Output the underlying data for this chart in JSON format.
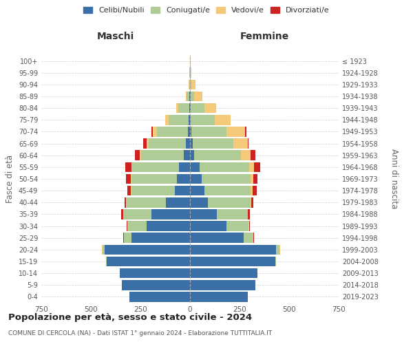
{
  "age_groups": [
    "0-4",
    "5-9",
    "10-14",
    "15-19",
    "20-24",
    "25-29",
    "30-34",
    "35-39",
    "40-44",
    "45-49",
    "50-54",
    "55-59",
    "60-64",
    "65-69",
    "70-74",
    "75-79",
    "80-84",
    "85-89",
    "90-94",
    "95-99",
    "100+"
  ],
  "birth_years": [
    "2019-2023",
    "2014-2018",
    "2009-2013",
    "2004-2008",
    "1999-2003",
    "1994-1998",
    "1989-1993",
    "1984-1988",
    "1979-1983",
    "1974-1978",
    "1969-1973",
    "1964-1968",
    "1959-1963",
    "1954-1958",
    "1949-1953",
    "1944-1948",
    "1939-1943",
    "1934-1938",
    "1929-1933",
    "1924-1928",
    "≤ 1923"
  ],
  "colors": {
    "celibe": "#3a6fa8",
    "coniugato": "#b0cc96",
    "vedovo": "#f5c97a",
    "divorziato": "#cc2222"
  },
  "males": {
    "celibe": [
      305,
      345,
      355,
      420,
      430,
      295,
      220,
      195,
      120,
      75,
      65,
      55,
      30,
      22,
      12,
      8,
      5,
      2,
      0,
      0,
      0
    ],
    "coniugato": [
      0,
      0,
      0,
      5,
      10,
      40,
      95,
      140,
      200,
      220,
      230,
      235,
      215,
      185,
      155,
      100,
      55,
      15,
      5,
      2,
      0
    ],
    "vedovo": [
      0,
      0,
      0,
      0,
      5,
      0,
      0,
      2,
      2,
      3,
      5,
      5,
      10,
      12,
      20,
      18,
      10,
      5,
      3,
      0,
      0
    ],
    "divorziato": [
      0,
      0,
      0,
      0,
      0,
      2,
      4,
      10,
      8,
      18,
      22,
      30,
      22,
      18,
      8,
      0,
      0,
      0,
      0,
      0,
      0
    ]
  },
  "females": {
    "nubile": [
      290,
      330,
      340,
      430,
      435,
      270,
      185,
      135,
      90,
      72,
      60,
      48,
      22,
      15,
      8,
      5,
      3,
      2,
      0,
      0,
      0
    ],
    "coniugata": [
      0,
      0,
      0,
      5,
      15,
      50,
      110,
      155,
      215,
      235,
      245,
      250,
      235,
      205,
      175,
      120,
      70,
      20,
      8,
      3,
      0
    ],
    "vedova": [
      0,
      0,
      0,
      0,
      5,
      0,
      3,
      3,
      5,
      8,
      15,
      25,
      50,
      70,
      95,
      80,
      60,
      40,
      20,
      5,
      2
    ],
    "divorziata": [
      0,
      0,
      0,
      0,
      0,
      2,
      5,
      10,
      10,
      22,
      22,
      32,
      22,
      5,
      5,
      0,
      0,
      0,
      0,
      0,
      0
    ]
  },
  "xlim": 750,
  "xlabel_left": "Maschi",
  "xlabel_right": "Femmine",
  "ylabel": "Fasce di età",
  "ylabel_right": "Anni di nascita",
  "title": "Popolazione per età, sesso e stato civile - 2024",
  "subtitle": "COMUNE DI CERCOLA (NA) - Dati ISTAT 1° gennaio 2024 - Elaborazione TUTTITALIA.IT",
  "legend_labels": [
    "Celibi/Nubili",
    "Coniugati/e",
    "Vedovi/e",
    "Divorziati/e"
  ],
  "legend_colors": [
    "#3a6fa8",
    "#b0cc96",
    "#f5c97a",
    "#cc2222"
  ],
  "background_color": "#ffffff",
  "grid_color": "#cccccc",
  "bar_height": 0.85
}
